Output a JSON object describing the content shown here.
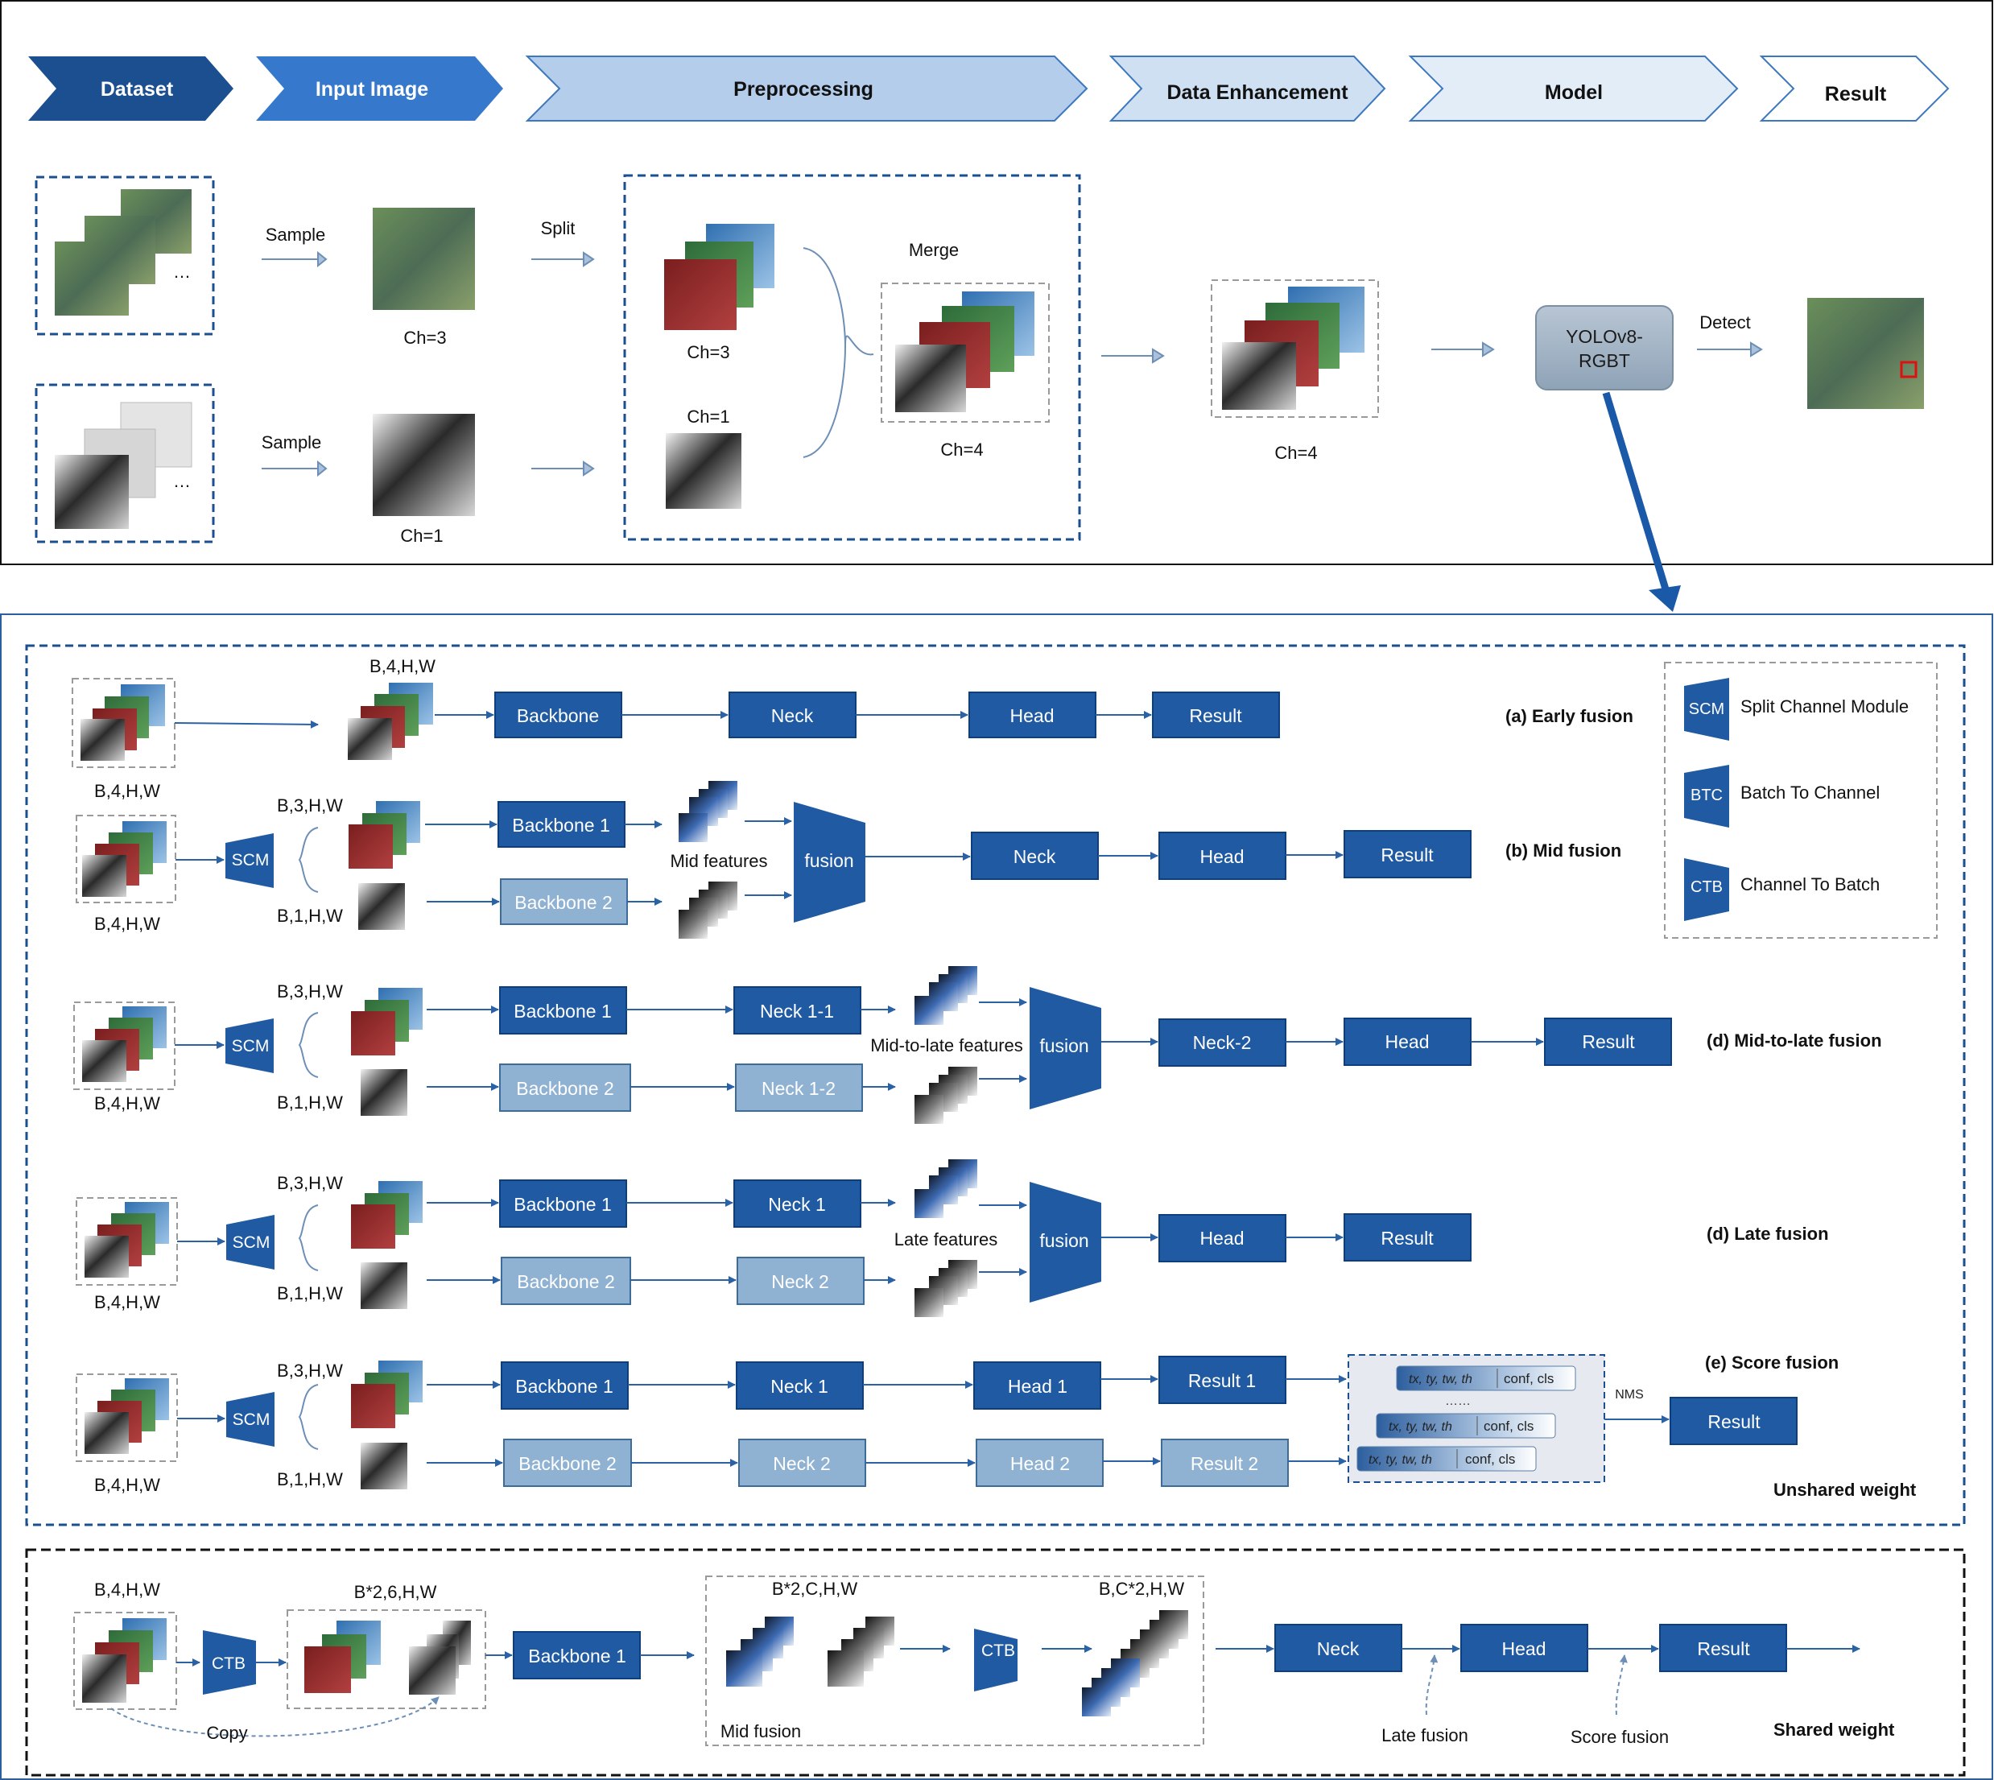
{
  "pipeline": {
    "stages": [
      "Dataset",
      "Input Image",
      "Preprocessing",
      "Data Enhancement",
      "Model",
      "Result"
    ],
    "sample_label": "Sample",
    "split_label": "Split",
    "merge_label": "Merge",
    "detect_label": "Detect",
    "ch3": "Ch=3",
    "ch1": "Ch=1",
    "ch4": "Ch=4",
    "model_line1": "YOLOv8-",
    "model_line2": "RGBT"
  },
  "fusion": {
    "dims": {
      "b4": "B,4,H,W",
      "b3": "B,3,H,W",
      "b1": "B,1,H,W",
      "b2x6": "B*2,6,H,W",
      "b2xc": "B*2,C,H,W",
      "bc2": "B,C*2,H,W"
    },
    "modules": {
      "backbone": "Backbone",
      "backbone1": "Backbone 1",
      "backbone2": "Backbone 2",
      "neck": "Neck",
      "neck11": "Neck 1-1",
      "neck12": "Neck 1-2",
      "neck1": "Neck 1",
      "neck2": "Neck 2",
      "neck_2": "Neck-2",
      "head": "Head",
      "head1": "Head 1",
      "head2": "Head 2",
      "result": "Result",
      "result1": "Result 1",
      "result2": "Result 2",
      "fusion": "fusion",
      "scm": "SCM",
      "btc": "BTC",
      "ctb": "CTB"
    },
    "captions": {
      "early": "(a) Early fusion",
      "mid": "(b) Mid fusion",
      "midlate": "(d) Mid-to-late fusion",
      "late": "(d) Late fusion",
      "score": "(e) Score fusion",
      "unshared": "Unshared weight",
      "shared": "Shared weight"
    },
    "features": {
      "mid": "Mid features",
      "midlate": "Mid-to-late features",
      "late": "Late features",
      "mid_fusion": "Mid fusion",
      "late_fusion": "Late fusion",
      "score_fusion": "Score fusion",
      "copy": "Copy",
      "nms": "NMS"
    },
    "legend": [
      {
        "abbr": "SCM",
        "text": "Split Channel Module"
      },
      {
        "abbr": "BTC",
        "text": "Batch To Channel"
      },
      {
        "abbr": "CTB",
        "text": "Channel To Batch"
      }
    ],
    "score_rows": {
      "coords": "tx, ty, tw, th",
      "conf": "conf, cls",
      "dots": "……"
    }
  },
  "colors": {
    "dark_box": "#1f5aa3",
    "light_box": "#8fb1d2",
    "arrow": "#2b62a6"
  }
}
